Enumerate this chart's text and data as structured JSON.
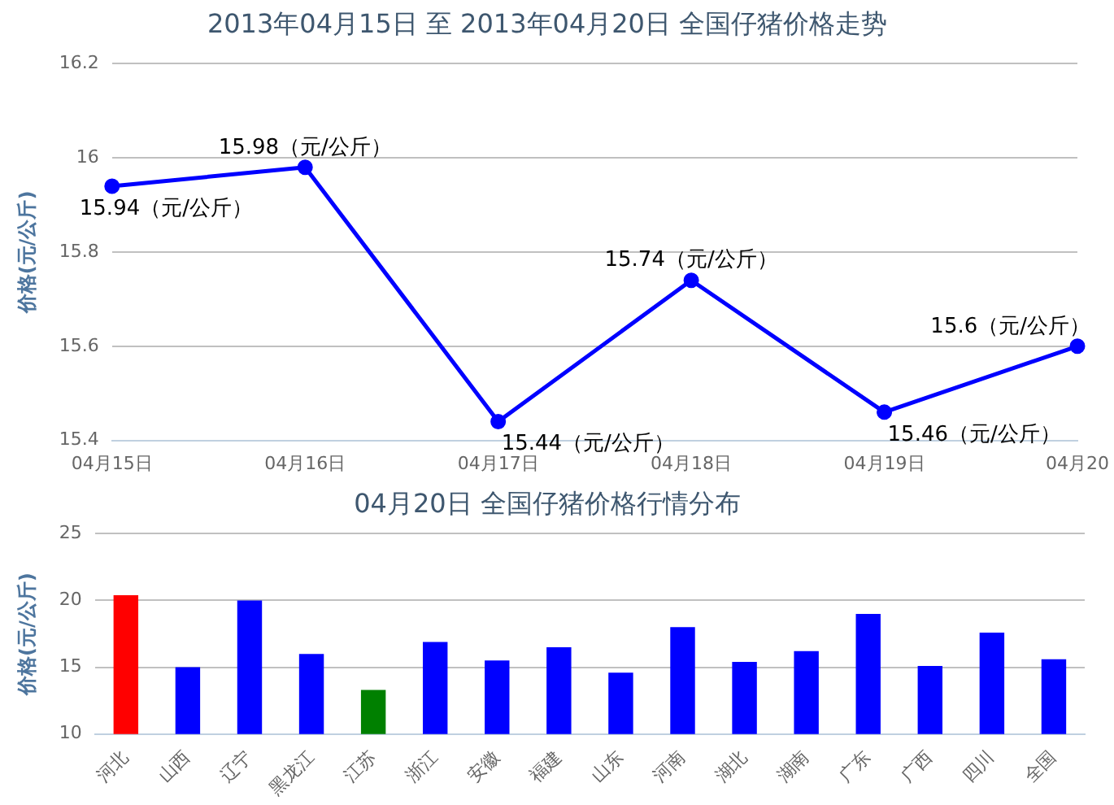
{
  "chart_data": [
    {
      "type": "line",
      "title": "2013年04月15日 至 2013年04月20日 全国仔猪价格走势",
      "ylabel": "价格(元/公斤)",
      "categories": [
        "04月15日",
        "04月16日",
        "04月17日",
        "04月18日",
        "04月19日",
        "04月20"
      ],
      "series": [
        {
          "color": "#0000ff",
          "values": [
            15.94,
            15.98,
            15.44,
            15.74,
            15.46,
            15.6
          ],
          "value_labels": [
            "15.94（元/公斤）",
            "15.98（元/公斤）",
            "15.44（元/公斤）",
            "15.74（元/公斤）",
            "15.46（元/公斤）",
            "15.6（元/公斤）"
          ]
        }
      ],
      "ylim": [
        15.4,
        16.2
      ],
      "yticks": [
        15.4,
        15.6,
        15.8,
        16,
        16.2
      ],
      "grid": "y",
      "legend": false,
      "marker": "circle"
    },
    {
      "type": "bar",
      "title": "04月20日 全国仔猪价格行情分布",
      "ylabel": "价格(元/公斤)",
      "categories": [
        "河北",
        "山西",
        "辽宁",
        "黑龙江",
        "江苏",
        "浙江",
        "安徽",
        "福建",
        "山东",
        "河南",
        "湖北",
        "湖南",
        "广东",
        "广西",
        "四川",
        "全国"
      ],
      "values": [
        20.4,
        15,
        20,
        16,
        13.3,
        16.9,
        15.5,
        16.5,
        14.6,
        18,
        15.4,
        16.2,
        19,
        15.1,
        17.6,
        15.6
      ],
      "colors": [
        "#ff0000",
        "#0000ff",
        "#0000ff",
        "#0000ff",
        "#008000",
        "#0000ff",
        "#0000ff",
        "#0000ff",
        "#0000ff",
        "#0000ff",
        "#0000ff",
        "#0000ff",
        "#0000ff",
        "#0000ff",
        "#0000ff",
        "#0000ff"
      ],
      "ylim": [
        10,
        25
      ],
      "yticks": [
        10,
        15,
        20,
        25
      ],
      "grid": "y",
      "legend": false
    }
  ]
}
